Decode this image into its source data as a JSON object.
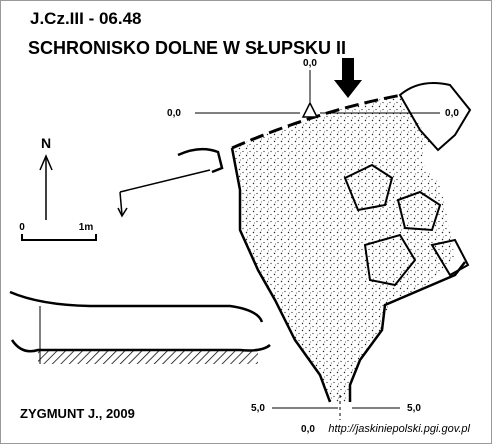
{
  "header": {
    "code": "J.Cz.III - 06.48",
    "title": "SCHRONISKO DOLNE W SŁUPSKU II"
  },
  "datums": {
    "top": "0,0",
    "left": "0,0",
    "right": "0,0",
    "bottom_left": "5,0",
    "bottom_right": "5,0",
    "bottom": "0,0"
  },
  "north": "N",
  "scale": {
    "start": "0",
    "end": "1m"
  },
  "author": "ZYGMUNT J., 2009",
  "source": "http://jaskiniepolski.pgi.gov.pl"
}
